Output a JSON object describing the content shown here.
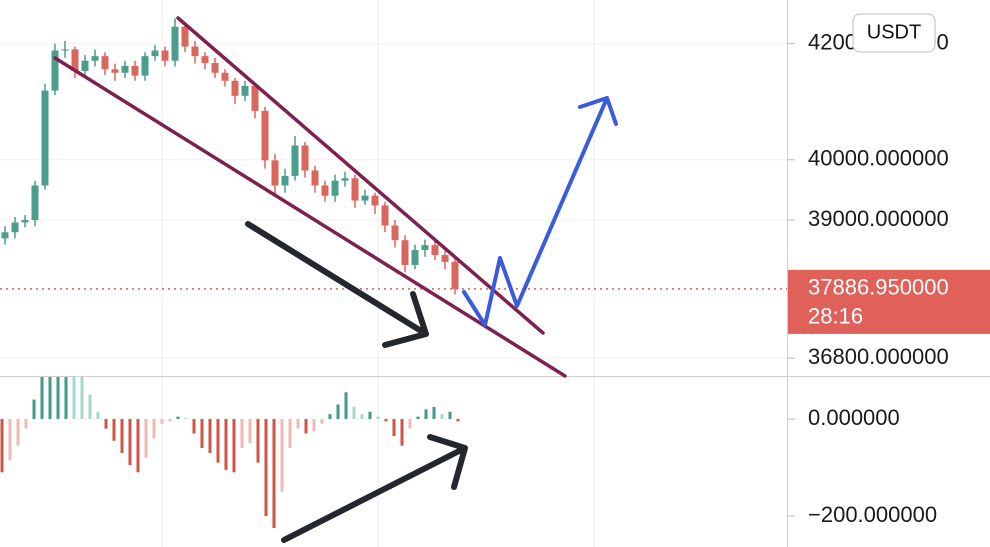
{
  "chart_data": [
    {
      "type": "candlestick",
      "log_scale": true,
      "grid": true,
      "up_color": "#4c9e8c",
      "down_color": "#d9675c",
      "open": [
        38700,
        38800,
        38960,
        39000,
        39570,
        41180,
        41880,
        41900,
        41520,
        41700,
        41780,
        41550,
        41490,
        41610,
        41440,
        41780,
        41880,
        41700,
        42300,
        41950,
        41780,
        41660,
        41490,
        41350,
        41090,
        41260,
        40830,
        39990,
        39570,
        39730,
        40240,
        39820,
        39570,
        39400,
        39650,
        39690,
        39320,
        39400,
        39240,
        38910,
        38670,
        38270,
        38510,
        38590,
        38430,
        38320
      ],
      "high": [
        38900,
        39050,
        39080,
        39650,
        41300,
        42000,
        42050,
        41950,
        41800,
        41900,
        41850,
        41650,
        41700,
        41700,
        41850,
        41980,
        41950,
        42450,
        42350,
        42050,
        41850,
        41750,
        41550,
        41400,
        41350,
        41300,
        40900,
        40100,
        39850,
        40400,
        40300,
        39900,
        39650,
        39750,
        39800,
        39750,
        39500,
        39450,
        39300,
        39000,
        38750,
        38600,
        38680,
        38700,
        38500,
        38400
      ],
      "low": [
        38600,
        38700,
        38880,
        38900,
        39500,
        41100,
        41750,
        41400,
        41450,
        41600,
        41450,
        41350,
        41400,
        41350,
        41350,
        41700,
        41600,
        41600,
        41850,
        41650,
        41550,
        41400,
        41250,
        40950,
        41000,
        40700,
        39850,
        39400,
        39450,
        39650,
        39700,
        39450,
        39300,
        39300,
        39550,
        39200,
        39250,
        39100,
        38800,
        38550,
        38150,
        38200,
        38400,
        38350,
        38200,
        37800
      ],
      "close": [
        38800,
        38960,
        39000,
        39570,
        41180,
        41880,
        41900,
        41520,
        41700,
        41780,
        41550,
        41490,
        41610,
        41440,
        41780,
        41880,
        41700,
        42300,
        41950,
        41780,
        41660,
        41490,
        41350,
        41090,
        41260,
        40830,
        39990,
        39570,
        39730,
        40240,
        39820,
        39570,
        39400,
        39650,
        39690,
        39320,
        39400,
        39240,
        38910,
        38670,
        38270,
        38510,
        38590,
        38430,
        38320,
        37886.95
      ],
      "ylim": [
        36525,
        42778
      ],
      "yticks": [
        {
          "value": 42000,
          "label": "42000.000000"
        },
        {
          "value": 40000,
          "label": "40000.000000"
        },
        {
          "value": 39000,
          "label": "39000.000000"
        },
        {
          "value": 36800,
          "label": "36800.000000"
        }
      ],
      "current_price": 37886.95,
      "current_price_label": "37886.950000",
      "countdown": "28:16",
      "price_color": "#e0605a",
      "unit_button": "USDT"
    },
    {
      "type": "histogram",
      "colors": {
        "up_strong": "#3f9a86",
        "up_weak": "#a9d6cc",
        "down_strong": "#cf5448",
        "down_weak": "#f2b8b3"
      },
      "values": [
        -110,
        -85,
        -55,
        -20,
        40,
        90,
        95,
        100,
        100,
        95,
        90,
        50,
        15,
        -20,
        -45,
        -70,
        -95,
        -110,
        -80,
        -40,
        -10,
        -5,
        5,
        2,
        -30,
        -60,
        -70,
        -90,
        -105,
        -110,
        -60,
        -50,
        -90,
        -200,
        -225,
        -150,
        -60,
        -20,
        -30,
        -25,
        -10,
        10,
        30,
        55,
        25,
        10,
        15,
        5,
        -5,
        -35,
        -55,
        -20,
        5,
        20,
        25,
        10,
        15,
        -5
      ],
      "ylim": [
        -264,
        86.6
      ],
      "yticks": [
        {
          "value": 0,
          "label": "0.000000"
        },
        {
          "value": -200,
          "label": "−200.000000"
        }
      ]
    }
  ]
}
